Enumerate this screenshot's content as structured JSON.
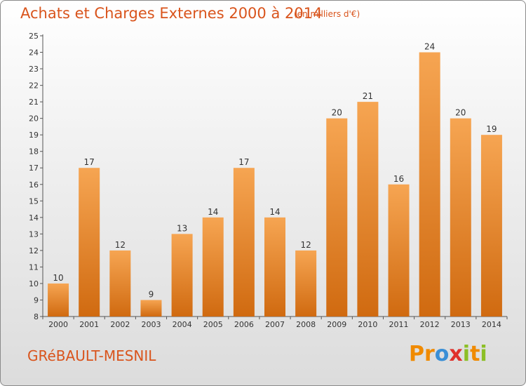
{
  "title": "Achats et Charges Externes 2000 à 2014",
  "subtitle": "(en milliers d'€)",
  "commune": "GRéBAULT-MESNIL",
  "brand": {
    "letters": [
      "P",
      "r",
      "o",
      "x",
      "i",
      "t",
      "i"
    ],
    "colors": [
      "#f08a00",
      "#f08a00",
      "#3a8fd6",
      "#e0302a",
      "#8cbf26",
      "#f08a00",
      "#8cbf26"
    ]
  },
  "colors": {
    "bar_top": "#f6a552",
    "bar_bottom": "#d06a10",
    "title": "#d9541c"
  },
  "chart_data": {
    "type": "bar",
    "title": "Achats et Charges Externes 2000 à 2014",
    "subtitle": "(en milliers d'€)",
    "categories": [
      "2000",
      "2001",
      "2002",
      "2003",
      "2004",
      "2005",
      "2006",
      "2007",
      "2008",
      "2009",
      "2010",
      "2011",
      "2012",
      "2013",
      "2014"
    ],
    "values": [
      10,
      17,
      12,
      9,
      13,
      14,
      17,
      14,
      12,
      20,
      21,
      16,
      24,
      20,
      19
    ],
    "ylim": [
      8,
      25
    ],
    "yticks": [
      8,
      9,
      10,
      11,
      12,
      13,
      14,
      15,
      16,
      17,
      18,
      19,
      20,
      21,
      22,
      23,
      24,
      25
    ],
    "grid": false,
    "legend": "none"
  }
}
